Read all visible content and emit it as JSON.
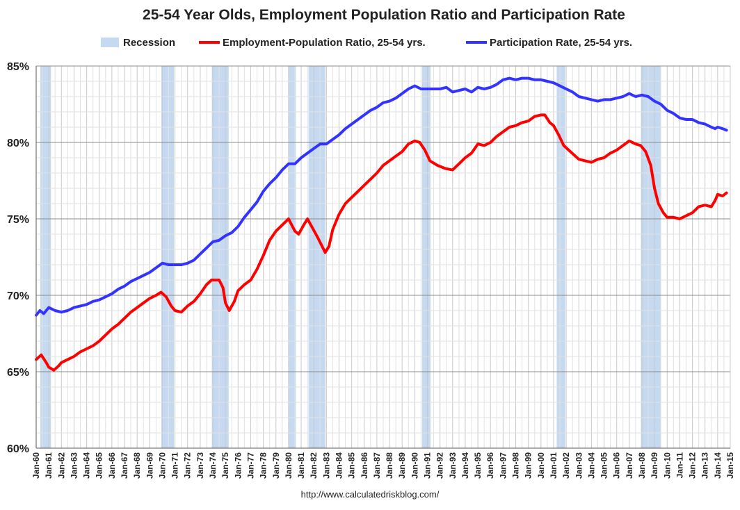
{
  "chart_data": {
    "type": "line",
    "title": "25-54 Year Olds, Employment Population Ratio and Participation Rate",
    "ylim": [
      60,
      85
    ],
    "yticks": [
      "60%",
      "65%",
      "70%",
      "75%",
      "80%",
      "85%"
    ],
    "xlim": [
      1960,
      2015
    ],
    "xticks": [
      "Jan-60",
      "Jan-61",
      "Jan-62",
      "Jan-63",
      "Jan-64",
      "Jan-65",
      "Jan-66",
      "Jan-67",
      "Jan-68",
      "Jan-69",
      "Jan-70",
      "Jan-71",
      "Jan-72",
      "Jan-73",
      "Jan-74",
      "Jan-75",
      "Jan-76",
      "Jan-77",
      "Jan-78",
      "Jan-79",
      "Jan-80",
      "Jan-81",
      "Jan-82",
      "Jan-83",
      "Jan-84",
      "Jan-85",
      "Jan-86",
      "Jan-87",
      "Jan-88",
      "Jan-89",
      "Jan-90",
      "Jan-91",
      "Jan-92",
      "Jan-93",
      "Jan-94",
      "Jan-95",
      "Jan-96",
      "Jan-97",
      "Jan-98",
      "Jan-99",
      "Jan-00",
      "Jan-01",
      "Jan-02",
      "Jan-03",
      "Jan-04",
      "Jan-05",
      "Jan-06",
      "Jan-07",
      "Jan-08",
      "Jan-09",
      "Jan-10",
      "Jan-11",
      "Jan-12",
      "Jan-13",
      "Jan-14",
      "Jan-15"
    ],
    "grid": true,
    "legend_position": "top",
    "recession_label": "Recession",
    "recession_color": "#c5d9f1",
    "recessions": [
      [
        1960.33,
        1961.17
      ],
      [
        1969.92,
        1970.92
      ],
      [
        1973.92,
        1975.25
      ],
      [
        1980.0,
        1980.58
      ],
      [
        1981.58,
        1982.92
      ],
      [
        1990.58,
        1991.25
      ],
      [
        2001.25,
        2001.92
      ],
      [
        2007.92,
        2009.5
      ]
    ],
    "series": [
      {
        "name": "Employment-Population Ratio, 25-54 yrs.",
        "color": "#ff0000",
        "points": [
          [
            1960.0,
            65.8
          ],
          [
            1960.4,
            66.1
          ],
          [
            1960.8,
            65.6
          ],
          [
            1961.0,
            65.3
          ],
          [
            1961.4,
            65.1
          ],
          [
            1961.8,
            65.4
          ],
          [
            1962.0,
            65.6
          ],
          [
            1962.5,
            65.8
          ],
          [
            1963.0,
            66.0
          ],
          [
            1963.5,
            66.3
          ],
          [
            1964.0,
            66.5
          ],
          [
            1964.5,
            66.7
          ],
          [
            1965.0,
            67.0
          ],
          [
            1965.5,
            67.4
          ],
          [
            1966.0,
            67.8
          ],
          [
            1966.5,
            68.1
          ],
          [
            1967.0,
            68.5
          ],
          [
            1967.5,
            68.9
          ],
          [
            1968.0,
            69.2
          ],
          [
            1968.5,
            69.5
          ],
          [
            1969.0,
            69.8
          ],
          [
            1969.5,
            70.0
          ],
          [
            1969.9,
            70.2
          ],
          [
            1970.3,
            69.9
          ],
          [
            1970.7,
            69.3
          ],
          [
            1971.0,
            69.0
          ],
          [
            1971.5,
            68.9
          ],
          [
            1972.0,
            69.3
          ],
          [
            1972.5,
            69.6
          ],
          [
            1973.0,
            70.1
          ],
          [
            1973.5,
            70.7
          ],
          [
            1973.9,
            71.0
          ],
          [
            1974.5,
            71.0
          ],
          [
            1974.8,
            70.5
          ],
          [
            1975.0,
            69.5
          ],
          [
            1975.3,
            69.0
          ],
          [
            1975.7,
            69.6
          ],
          [
            1976.0,
            70.3
          ],
          [
            1976.5,
            70.7
          ],
          [
            1977.0,
            71.0
          ],
          [
            1977.5,
            71.7
          ],
          [
            1978.0,
            72.6
          ],
          [
            1978.5,
            73.6
          ],
          [
            1979.0,
            74.2
          ],
          [
            1979.5,
            74.6
          ],
          [
            1980.0,
            75.0
          ],
          [
            1980.5,
            74.2
          ],
          [
            1980.8,
            74.0
          ],
          [
            1981.2,
            74.6
          ],
          [
            1981.5,
            75.0
          ],
          [
            1981.9,
            74.4
          ],
          [
            1982.3,
            73.8
          ],
          [
            1982.6,
            73.3
          ],
          [
            1982.9,
            72.8
          ],
          [
            1983.2,
            73.2
          ],
          [
            1983.5,
            74.3
          ],
          [
            1984.0,
            75.3
          ],
          [
            1984.5,
            76.0
          ],
          [
            1985.0,
            76.4
          ],
          [
            1985.5,
            76.8
          ],
          [
            1986.0,
            77.2
          ],
          [
            1986.5,
            77.6
          ],
          [
            1987.0,
            78.0
          ],
          [
            1987.5,
            78.5
          ],
          [
            1988.0,
            78.8
          ],
          [
            1988.5,
            79.1
          ],
          [
            1989.0,
            79.4
          ],
          [
            1989.5,
            79.9
          ],
          [
            1990.0,
            80.1
          ],
          [
            1990.4,
            80.0
          ],
          [
            1990.8,
            79.5
          ],
          [
            1991.2,
            78.8
          ],
          [
            1991.8,
            78.5
          ],
          [
            1992.4,
            78.3
          ],
          [
            1993.0,
            78.2
          ],
          [
            1993.5,
            78.6
          ],
          [
            1994.0,
            79.0
          ],
          [
            1994.5,
            79.3
          ],
          [
            1995.0,
            79.9
          ],
          [
            1995.5,
            79.8
          ],
          [
            1996.0,
            80.0
          ],
          [
            1996.5,
            80.4
          ],
          [
            1997.0,
            80.7
          ],
          [
            1997.5,
            81.0
          ],
          [
            1998.0,
            81.1
          ],
          [
            1998.5,
            81.3
          ],
          [
            1999.0,
            81.4
          ],
          [
            1999.5,
            81.7
          ],
          [
            2000.0,
            81.8
          ],
          [
            2000.3,
            81.8
          ],
          [
            2000.7,
            81.3
          ],
          [
            2001.0,
            81.1
          ],
          [
            2001.4,
            80.5
          ],
          [
            2001.8,
            79.8
          ],
          [
            2002.2,
            79.5
          ],
          [
            2002.6,
            79.2
          ],
          [
            2003.0,
            78.9
          ],
          [
            2003.5,
            78.8
          ],
          [
            2004.0,
            78.7
          ],
          [
            2004.5,
            78.9
          ],
          [
            2005.0,
            79.0
          ],
          [
            2005.5,
            79.3
          ],
          [
            2006.0,
            79.5
          ],
          [
            2006.5,
            79.8
          ],
          [
            2007.0,
            80.1
          ],
          [
            2007.5,
            79.9
          ],
          [
            2007.9,
            79.8
          ],
          [
            2008.3,
            79.4
          ],
          [
            2008.7,
            78.5
          ],
          [
            2009.0,
            77.0
          ],
          [
            2009.3,
            76.0
          ],
          [
            2009.7,
            75.4
          ],
          [
            2010.0,
            75.1
          ],
          [
            2010.5,
            75.1
          ],
          [
            2011.0,
            75.0
          ],
          [
            2011.5,
            75.2
          ],
          [
            2012.0,
            75.4
          ],
          [
            2012.5,
            75.8
          ],
          [
            2013.0,
            75.9
          ],
          [
            2013.5,
            75.8
          ],
          [
            2013.8,
            76.2
          ],
          [
            2014.0,
            76.6
          ],
          [
            2014.4,
            76.5
          ],
          [
            2014.7,
            76.7
          ]
        ]
      },
      {
        "name": "Participation Rate, 25-54 yrs.",
        "color": "#3333ff",
        "points": [
          [
            1960.0,
            68.7
          ],
          [
            1960.3,
            69.0
          ],
          [
            1960.6,
            68.8
          ],
          [
            1961.0,
            69.2
          ],
          [
            1961.5,
            69.0
          ],
          [
            1962.0,
            68.9
          ],
          [
            1962.5,
            69.0
          ],
          [
            1963.0,
            69.2
          ],
          [
            1963.5,
            69.3
          ],
          [
            1964.0,
            69.4
          ],
          [
            1964.5,
            69.6
          ],
          [
            1965.0,
            69.7
          ],
          [
            1965.5,
            69.9
          ],
          [
            1966.0,
            70.1
          ],
          [
            1966.5,
            70.4
          ],
          [
            1967.0,
            70.6
          ],
          [
            1967.5,
            70.9
          ],
          [
            1968.0,
            71.1
          ],
          [
            1968.5,
            71.3
          ],
          [
            1969.0,
            71.5
          ],
          [
            1969.5,
            71.8
          ],
          [
            1970.0,
            72.1
          ],
          [
            1970.5,
            72.0
          ],
          [
            1971.0,
            72.0
          ],
          [
            1971.5,
            72.0
          ],
          [
            1972.0,
            72.1
          ],
          [
            1972.5,
            72.3
          ],
          [
            1973.0,
            72.7
          ],
          [
            1973.5,
            73.1
          ],
          [
            1974.0,
            73.5
          ],
          [
            1974.5,
            73.6
          ],
          [
            1975.0,
            73.9
          ],
          [
            1975.5,
            74.1
          ],
          [
            1976.0,
            74.5
          ],
          [
            1976.5,
            75.1
          ],
          [
            1977.0,
            75.6
          ],
          [
            1977.5,
            76.1
          ],
          [
            1978.0,
            76.8
          ],
          [
            1978.5,
            77.3
          ],
          [
            1979.0,
            77.7
          ],
          [
            1979.5,
            78.2
          ],
          [
            1980.0,
            78.6
          ],
          [
            1980.5,
            78.6
          ],
          [
            1981.0,
            79.0
          ],
          [
            1981.5,
            79.3
          ],
          [
            1982.0,
            79.6
          ],
          [
            1982.5,
            79.9
          ],
          [
            1983.0,
            79.9
          ],
          [
            1983.5,
            80.2
          ],
          [
            1984.0,
            80.5
          ],
          [
            1984.5,
            80.9
          ],
          [
            1985.0,
            81.2
          ],
          [
            1985.5,
            81.5
          ],
          [
            1986.0,
            81.8
          ],
          [
            1986.5,
            82.1
          ],
          [
            1987.0,
            82.3
          ],
          [
            1987.5,
            82.6
          ],
          [
            1988.0,
            82.7
          ],
          [
            1988.5,
            82.9
          ],
          [
            1989.0,
            83.2
          ],
          [
            1989.5,
            83.5
          ],
          [
            1990.0,
            83.7
          ],
          [
            1990.5,
            83.5
          ],
          [
            1991.0,
            83.5
          ],
          [
            1991.5,
            83.5
          ],
          [
            1992.0,
            83.5
          ],
          [
            1992.5,
            83.6
          ],
          [
            1993.0,
            83.3
          ],
          [
            1993.5,
            83.4
          ],
          [
            1994.0,
            83.5
          ],
          [
            1994.5,
            83.3
          ],
          [
            1995.0,
            83.6
          ],
          [
            1995.5,
            83.5
          ],
          [
            1996.0,
            83.6
          ],
          [
            1996.5,
            83.8
          ],
          [
            1997.0,
            84.1
          ],
          [
            1997.5,
            84.2
          ],
          [
            1998.0,
            84.1
          ],
          [
            1998.5,
            84.2
          ],
          [
            1999.0,
            84.2
          ],
          [
            1999.5,
            84.1
          ],
          [
            2000.0,
            84.1
          ],
          [
            2000.5,
            84.0
          ],
          [
            2001.0,
            83.9
          ],
          [
            2001.5,
            83.7
          ],
          [
            2002.0,
            83.5
          ],
          [
            2002.5,
            83.3
          ],
          [
            2003.0,
            83.0
          ],
          [
            2003.5,
            82.9
          ],
          [
            2004.0,
            82.8
          ],
          [
            2004.5,
            82.7
          ],
          [
            2005.0,
            82.8
          ],
          [
            2005.5,
            82.8
          ],
          [
            2006.0,
            82.9
          ],
          [
            2006.5,
            83.0
          ],
          [
            2007.0,
            83.2
          ],
          [
            2007.5,
            83.0
          ],
          [
            2008.0,
            83.1
          ],
          [
            2008.5,
            83.0
          ],
          [
            2009.0,
            82.7
          ],
          [
            2009.5,
            82.5
          ],
          [
            2010.0,
            82.1
          ],
          [
            2010.5,
            81.9
          ],
          [
            2011.0,
            81.6
          ],
          [
            2011.5,
            81.5
          ],
          [
            2012.0,
            81.5
          ],
          [
            2012.5,
            81.3
          ],
          [
            2013.0,
            81.2
          ],
          [
            2013.5,
            81.0
          ],
          [
            2013.8,
            80.9
          ],
          [
            2014.0,
            81.0
          ],
          [
            2014.4,
            80.9
          ],
          [
            2014.7,
            80.8
          ]
        ]
      }
    ]
  },
  "footer": "http://www.calculatedriskblog.com/"
}
